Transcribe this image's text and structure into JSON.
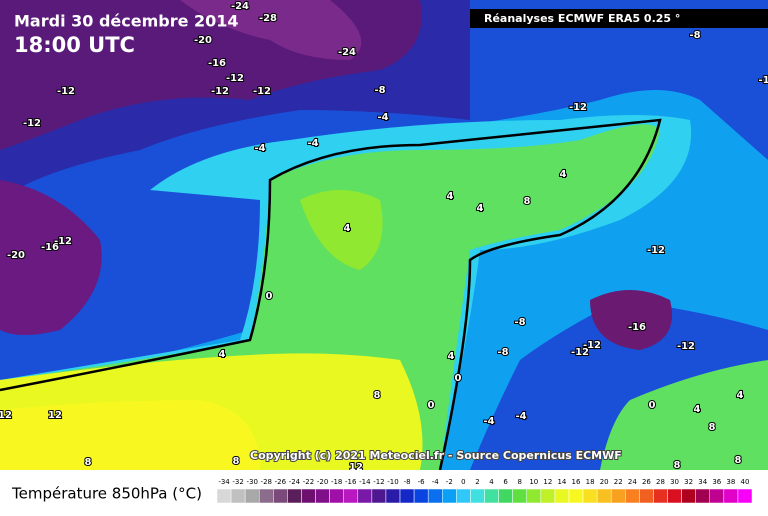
{
  "header": {
    "date": "Mardi 30 décembre 2014",
    "time": "18:00 UTC",
    "source": "Réanalyses ECMWF ERA5 0.25 °"
  },
  "copyright": "Copyright (c) 2021 Meteociel.fr - Source Copernicus ECMWF",
  "map": {
    "contour_labels": [
      -24,
      -28,
      -20,
      -24,
      -16,
      -12,
      -12,
      -12,
      -12,
      -12,
      -8,
      -4,
      -8,
      -4,
      -4,
      -12,
      -16,
      -20,
      4,
      0,
      4,
      4,
      4,
      4,
      8,
      4,
      0,
      0,
      -8,
      -8,
      -12,
      -12,
      -16,
      -12,
      -12,
      -12,
      -4,
      -4,
      12,
      12,
      8,
      8,
      8,
      12,
      0,
      4,
      8,
      4,
      8,
      8,
      -1
    ]
  },
  "legend": {
    "label": "Température 850hPa (°C)",
    "ticks": [
      -34,
      -32,
      -30,
      -28,
      -26,
      -24,
      -22,
      -20,
      -18,
      -16,
      -14,
      -12,
      -10,
      -8,
      -6,
      -4,
      -2,
      0,
      2,
      4,
      6,
      8,
      10,
      12,
      14,
      16,
      18,
      20,
      22,
      24,
      26,
      28,
      30,
      32,
      34,
      36,
      38,
      40
    ],
    "colors": [
      "#d8d8d8",
      "#c0c0c0",
      "#a8a8a8",
      "#8c6c8c",
      "#7a4a7a",
      "#5a1e5a",
      "#6e1070",
      "#80108a",
      "#a010a8",
      "#b818c0",
      "#7a18a8",
      "#501890",
      "#2a1ca8",
      "#1428c8",
      "#0a44e0",
      "#0a70f0",
      "#0aa0f8",
      "#30c8f8",
      "#40e0e0",
      "#40e0a0",
      "#40d860",
      "#60e040",
      "#90e830",
      "#c0f028",
      "#e8f820",
      "#f8f820",
      "#f8e020",
      "#f8c020",
      "#f8a020",
      "#f88020",
      "#f06020",
      "#e83020",
      "#d81020",
      "#b00020",
      "#a00050",
      "#c00090",
      "#e000c8",
      "#f800f8"
    ]
  }
}
